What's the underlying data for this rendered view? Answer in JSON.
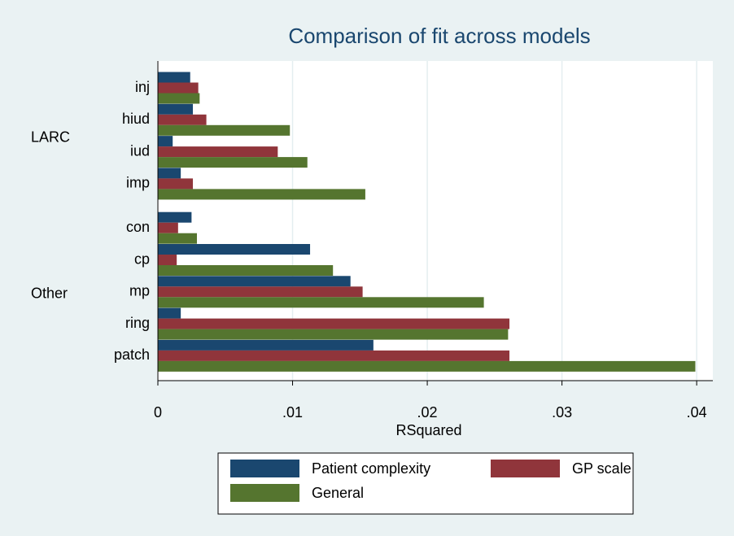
{
  "chart_data": {
    "type": "hbar",
    "title": "Comparison of fit across models",
    "xlabel": "RSquared",
    "groups": [
      {
        "label": "LARC",
        "categories": [
          "inj",
          "hiud",
          "iud",
          "imp"
        ]
      },
      {
        "label": "Other",
        "categories": [
          "con",
          "cp",
          "mp",
          "ring",
          "patch"
        ]
      }
    ],
    "series": [
      {
        "name": "Patient complexity",
        "color": "#1a476f",
        "values": [
          0.0024,
          0.0026,
          0.0011,
          0.0017,
          0.0025,
          0.0113,
          0.0143,
          0.0017,
          0.016
        ]
      },
      {
        "name": "GP scale",
        "color": "#90353b",
        "values": [
          0.003,
          0.0036,
          0.0089,
          0.0026,
          0.0015,
          0.0014,
          0.0152,
          0.0261,
          0.0261
        ]
      },
      {
        "name": "General",
        "color": "#55752f",
        "values": [
          0.0031,
          0.0098,
          0.0111,
          0.0154,
          0.0029,
          0.013,
          0.0242,
          0.026,
          0.0399
        ]
      }
    ],
    "xlim": [
      0,
      0.0412
    ],
    "xticks": [
      0,
      {
        "value": 0.01,
        "label": ".01"
      },
      {
        "value": 0.02,
        "label": ".02"
      },
      {
        "value": 0.03,
        "label": ".03"
      },
      {
        "value": 0.04,
        "label": ".04"
      }
    ],
    "grid": true
  }
}
